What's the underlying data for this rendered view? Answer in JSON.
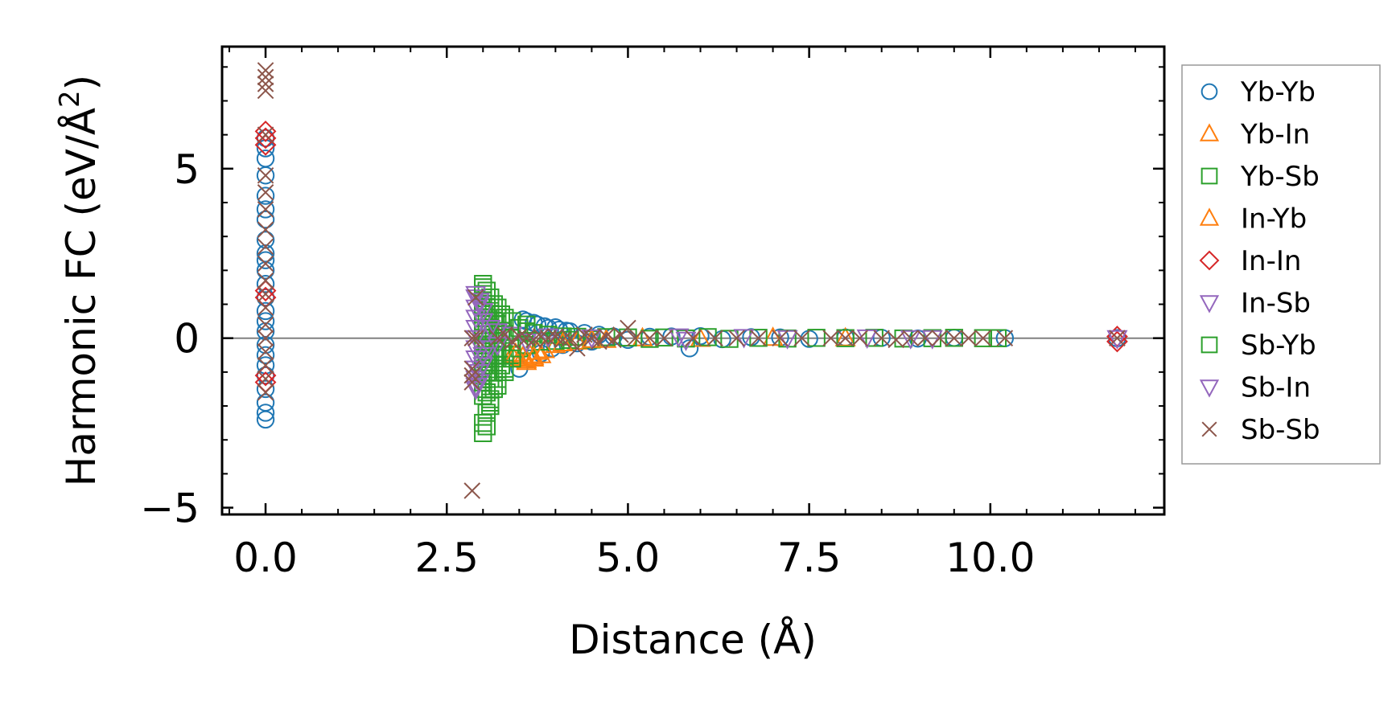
{
  "chart_data": {
    "type": "scatter",
    "title": "",
    "xlabel": "Distance (Å)",
    "ylabel_main": "Harmonic FC (eV/Å",
    "ylabel_sup": "2",
    "ylabel_tail": ")",
    "xlim": [
      -0.6,
      12.4
    ],
    "ylim": [
      -5.2,
      8.6
    ],
    "x_ticks": [
      0.0,
      2.5,
      5.0,
      7.5,
      10.0
    ],
    "x_tick_labels": [
      "0.0",
      "2.5",
      "5.0",
      "7.5",
      "10.0"
    ],
    "y_ticks": [
      -5,
      0,
      5
    ],
    "y_tick_labels": [
      "−5",
      "0",
      "5"
    ],
    "x_minor_step": 0.5,
    "y_minor_step": 1,
    "reference_line_y": 0,
    "grid": false,
    "legend_position": "outside-right",
    "series": [
      {
        "name": "Yb-Yb",
        "marker": "circle",
        "color": "#1f77b4",
        "points": [
          [
            0,
            -2.4
          ],
          [
            0,
            -2.2
          ],
          [
            0,
            -1.9
          ],
          [
            0,
            -1.5
          ],
          [
            0,
            -1.1
          ],
          [
            0,
            -0.8
          ],
          [
            0,
            -0.5
          ],
          [
            0,
            -0.2
          ],
          [
            0,
            0.2
          ],
          [
            0,
            0.5
          ],
          [
            0,
            0.8
          ],
          [
            0,
            1.2
          ],
          [
            0,
            1.6
          ],
          [
            0,
            2.0
          ],
          [
            0,
            2.3
          ],
          [
            0,
            2.5
          ],
          [
            0,
            2.9
          ],
          [
            0,
            3.5
          ],
          [
            0,
            3.8
          ],
          [
            0,
            4.2
          ],
          [
            0,
            4.8
          ],
          [
            0,
            5.3
          ],
          [
            0,
            5.6
          ],
          [
            0,
            5.9
          ],
          [
            3.5,
            -0.9
          ],
          [
            3.55,
            0.55
          ],
          [
            3.6,
            0.5
          ],
          [
            3.65,
            -0.6
          ],
          [
            3.7,
            0.45
          ],
          [
            3.75,
            0.4
          ],
          [
            3.8,
            -0.45
          ],
          [
            3.85,
            0.35
          ],
          [
            3.9,
            0.3
          ],
          [
            3.95,
            -0.3
          ],
          [
            4.0,
            0.32
          ],
          [
            4.05,
            0.25
          ],
          [
            4.1,
            -0.2
          ],
          [
            4.15,
            0.22
          ],
          [
            4.2,
            0.2
          ],
          [
            4.3,
            -0.15
          ],
          [
            4.4,
            0.15
          ],
          [
            4.5,
            -0.1
          ],
          [
            4.6,
            0.1
          ],
          [
            4.8,
            0.05
          ],
          [
            5.0,
            -0.05
          ],
          [
            5.3,
            0.04
          ],
          [
            5.6,
            0.05
          ],
          [
            5.85,
            -0.3
          ],
          [
            6.0,
            0.06
          ],
          [
            6.3,
            -0.03
          ],
          [
            6.7,
            0.03
          ],
          [
            7.1,
            0.02
          ],
          [
            7.5,
            -0.02
          ],
          [
            8.0,
            0.02
          ],
          [
            8.5,
            0.01
          ],
          [
            9.0,
            -0.01
          ],
          [
            9.5,
            0.01
          ],
          [
            10.2,
            0.0
          ],
          [
            11.75,
            0.0
          ]
        ]
      },
      {
        "name": "Yb-In",
        "marker": "triangle-up",
        "color": "#ff7f0e",
        "points": [
          [
            3.4,
            -0.5
          ],
          [
            3.5,
            -0.6
          ],
          [
            3.55,
            -0.55
          ],
          [
            3.6,
            -0.7
          ],
          [
            3.65,
            -0.5
          ],
          [
            3.7,
            -0.6
          ],
          [
            3.75,
            -0.4
          ],
          [
            3.8,
            -0.5
          ],
          [
            4.0,
            -0.2
          ],
          [
            4.3,
            -0.1
          ],
          [
            4.7,
            -0.05
          ],
          [
            5.2,
            0.0
          ],
          [
            6.0,
            -0.02
          ],
          [
            7.0,
            0.01
          ],
          [
            8.0,
            0.0
          ]
        ]
      },
      {
        "name": "Yb-Sb",
        "marker": "square",
        "color": "#2ca02c",
        "points": [
          [
            3.0,
            1.5
          ],
          [
            3.0,
            1.3
          ],
          [
            3.0,
            1.1
          ],
          [
            3.0,
            0.9
          ],
          [
            3.0,
            0.7
          ],
          [
            3.0,
            0.5
          ],
          [
            3.0,
            0.3
          ],
          [
            3.0,
            0.1
          ],
          [
            3.0,
            -0.1
          ],
          [
            3.0,
            -0.3
          ],
          [
            3.0,
            -0.5
          ],
          [
            3.0,
            -0.7
          ],
          [
            3.0,
            -0.9
          ],
          [
            3.0,
            -1.1
          ],
          [
            3.0,
            -1.3
          ],
          [
            3.0,
            -1.5
          ],
          [
            3.0,
            -1.7
          ],
          [
            3.0,
            -2.5
          ],
          [
            3.0,
            -2.8
          ],
          [
            3.05,
            1.4
          ],
          [
            3.05,
            1.0
          ],
          [
            3.05,
            0.6
          ],
          [
            3.05,
            0.2
          ],
          [
            3.05,
            -0.2
          ],
          [
            3.05,
            -0.6
          ],
          [
            3.05,
            -1.0
          ],
          [
            3.05,
            -1.6
          ],
          [
            3.05,
            -2.2
          ],
          [
            3.1,
            1.2
          ],
          [
            3.1,
            0.8
          ],
          [
            3.1,
            0.4
          ],
          [
            3.1,
            0.0
          ],
          [
            3.1,
            -0.4
          ],
          [
            3.1,
            -0.8
          ],
          [
            3.1,
            -1.2
          ],
          [
            3.1,
            -1.8
          ],
          [
            3.1,
            -2.0
          ],
          [
            3.15,
            1.0
          ],
          [
            3.15,
            0.5
          ],
          [
            3.15,
            0.0
          ],
          [
            3.15,
            -0.5
          ],
          [
            3.15,
            -1.0
          ],
          [
            3.15,
            -1.5
          ],
          [
            3.2,
            0.9
          ],
          [
            3.2,
            0.4
          ],
          [
            3.2,
            -0.1
          ],
          [
            3.2,
            -0.6
          ],
          [
            3.2,
            -1.2
          ],
          [
            3.25,
            0.7
          ],
          [
            3.25,
            0.2
          ],
          [
            3.25,
            -0.3
          ],
          [
            3.25,
            -0.8
          ],
          [
            3.3,
            0.6
          ],
          [
            3.3,
            0.1
          ],
          [
            3.3,
            -0.5
          ],
          [
            3.3,
            -1.0
          ],
          [
            3.4,
            0.5
          ],
          [
            3.4,
            0.0
          ],
          [
            3.4,
            -0.5
          ],
          [
            3.5,
            0.3
          ],
          [
            3.5,
            -0.3
          ],
          [
            3.6,
            0.2
          ],
          [
            3.6,
            -0.2
          ],
          [
            3.7,
            0.15
          ],
          [
            3.8,
            -0.1
          ],
          [
            3.9,
            0.1
          ],
          [
            4.0,
            -0.08
          ],
          [
            4.1,
            0.05
          ],
          [
            4.2,
            -0.05
          ],
          [
            4.3,
            0.04
          ],
          [
            4.5,
            -0.04
          ],
          [
            4.7,
            0.03
          ],
          [
            5.0,
            0.02
          ],
          [
            5.3,
            -0.02
          ],
          [
            5.5,
            0.02
          ],
          [
            5.8,
            -0.01
          ],
          [
            6.1,
            0.03
          ],
          [
            6.4,
            -0.02
          ],
          [
            6.8,
            0.01
          ],
          [
            7.2,
            -0.01
          ],
          [
            7.6,
            0.01
          ],
          [
            8.0,
            0.0
          ],
          [
            8.4,
            0.01
          ],
          [
            8.8,
            -0.01
          ],
          [
            9.2,
            0.0
          ],
          [
            9.5,
            0.01
          ],
          [
            9.9,
            0.0
          ],
          [
            10.1,
            0.0
          ]
        ]
      },
      {
        "name": "In-Yb",
        "marker": "triangle-up",
        "color": "#ff7f0e",
        "points": [
          [
            3.45,
            -0.45
          ],
          [
            3.6,
            -0.65
          ],
          [
            3.7,
            -0.55
          ],
          [
            3.85,
            -0.35
          ],
          [
            4.1,
            -0.15
          ],
          [
            4.5,
            -0.05
          ]
        ]
      },
      {
        "name": "In-In",
        "marker": "diamond",
        "color": "#d62728",
        "points": [
          [
            0,
            6.1
          ],
          [
            0,
            5.9
          ],
          [
            0,
            5.7
          ],
          [
            0,
            1.4
          ],
          [
            0,
            1.2
          ],
          [
            0,
            -1.1
          ],
          [
            0,
            -1.3
          ],
          [
            11.75,
            0.05
          ],
          [
            11.75,
            -0.1
          ]
        ]
      },
      {
        "name": "In-Sb",
        "marker": "triangle-down",
        "color": "#9467bd",
        "points": [
          [
            2.9,
            1.2
          ],
          [
            2.9,
            0.9
          ],
          [
            2.9,
            0.6
          ],
          [
            2.9,
            0.3
          ],
          [
            2.9,
            0.0
          ],
          [
            2.9,
            -0.3
          ],
          [
            2.9,
            -0.6
          ],
          [
            2.9,
            -0.9
          ],
          [
            2.9,
            -1.2
          ],
          [
            2.9,
            -1.4
          ],
          [
            2.95,
            1.0
          ],
          [
            2.95,
            -1.0
          ],
          [
            3.0,
            0.5
          ],
          [
            3.0,
            -0.5
          ],
          [
            3.1,
            0.3
          ],
          [
            3.1,
            -0.3
          ],
          [
            3.2,
            0.2
          ],
          [
            3.2,
            -0.2
          ],
          [
            3.4,
            0.1
          ],
          [
            3.6,
            -0.1
          ],
          [
            3.9,
            0.05
          ],
          [
            4.5,
            0.02
          ],
          [
            5.7,
            0.05
          ],
          [
            5.8,
            -0.05
          ],
          [
            6.6,
            0.03
          ],
          [
            7.2,
            0.0
          ],
          [
            8.3,
            0.02
          ],
          [
            8.9,
            0.0
          ],
          [
            9.2,
            0.0
          ],
          [
            11.75,
            0.0
          ]
        ]
      },
      {
        "name": "Sb-Yb",
        "marker": "square",
        "color": "#2ca02c",
        "points": [
          [
            3.0,
            1.6
          ],
          [
            3.05,
            -2.6
          ],
          [
            3.1,
            -1.9
          ],
          [
            3.2,
            -1.4
          ],
          [
            3.3,
            -0.9
          ],
          [
            3.4,
            -0.6
          ],
          [
            3.6,
            0.4
          ]
        ]
      },
      {
        "name": "Sb-In",
        "marker": "triangle-down",
        "color": "#9467bd",
        "points": [
          [
            2.9,
            1.3
          ],
          [
            2.9,
            -1.5
          ],
          [
            2.95,
            1.1
          ],
          [
            2.95,
            -1.3
          ],
          [
            3.0,
            0.8
          ],
          [
            3.0,
            -0.8
          ]
        ]
      },
      {
        "name": "Sb-Sb",
        "marker": "x",
        "color": "#8c564b",
        "points": [
          [
            0,
            7.9
          ],
          [
            0,
            7.7
          ],
          [
            0,
            7.5
          ],
          [
            0,
            7.3
          ],
          [
            0,
            6.0
          ],
          [
            0,
            4.8
          ],
          [
            0,
            4.3
          ],
          [
            0,
            3.8
          ],
          [
            0,
            3.2
          ],
          [
            0,
            2.7
          ],
          [
            0,
            2.2
          ],
          [
            0,
            1.7
          ],
          [
            0,
            1.3
          ],
          [
            0,
            0.9
          ],
          [
            0,
            0.4
          ],
          [
            0,
            0.0
          ],
          [
            0,
            -0.4
          ],
          [
            0,
            -0.8
          ],
          [
            0,
            -1.2
          ],
          [
            0,
            -1.6
          ],
          [
            2.85,
            0.0
          ],
          [
            2.85,
            -0.9
          ],
          [
            2.85,
            -1.1
          ],
          [
            2.85,
            -1.3
          ],
          [
            2.85,
            -4.5
          ],
          [
            2.9,
            1.2
          ],
          [
            2.9,
            0.0
          ],
          [
            3.2,
            0.0
          ],
          [
            3.3,
            0.1
          ],
          [
            3.4,
            -0.1
          ],
          [
            3.5,
            0.05
          ],
          [
            3.6,
            0.0
          ],
          [
            3.7,
            -0.05
          ],
          [
            3.8,
            0.05
          ],
          [
            3.9,
            0.0
          ],
          [
            4.0,
            0.05
          ],
          [
            4.1,
            -0.05
          ],
          [
            4.2,
            0.0
          ],
          [
            4.3,
            -0.3
          ],
          [
            4.4,
            0.1
          ],
          [
            4.5,
            0.0
          ],
          [
            4.6,
            -0.1
          ],
          [
            4.7,
            0.05
          ],
          [
            4.8,
            -0.05
          ],
          [
            4.9,
            0.1
          ],
          [
            5.0,
            0.3
          ],
          [
            5.1,
            0.0
          ],
          [
            5.3,
            0.0
          ],
          [
            5.5,
            0.0
          ],
          [
            5.9,
            0.0
          ],
          [
            6.2,
            0.0
          ],
          [
            6.5,
            0.0
          ],
          [
            6.8,
            0.0
          ],
          [
            7.1,
            0.0
          ],
          [
            7.4,
            0.0
          ],
          [
            7.8,
            0.0
          ],
          [
            8.0,
            0.0
          ],
          [
            8.2,
            0.0
          ],
          [
            8.5,
            0.0
          ],
          [
            8.7,
            -0.05
          ],
          [
            8.9,
            0.0
          ],
          [
            9.1,
            0.0
          ],
          [
            9.3,
            0.0
          ],
          [
            9.5,
            0.0
          ],
          [
            9.7,
            0.0
          ],
          [
            9.9,
            0.0
          ],
          [
            10.2,
            0.0
          ],
          [
            11.75,
            0.0
          ]
        ]
      }
    ]
  }
}
